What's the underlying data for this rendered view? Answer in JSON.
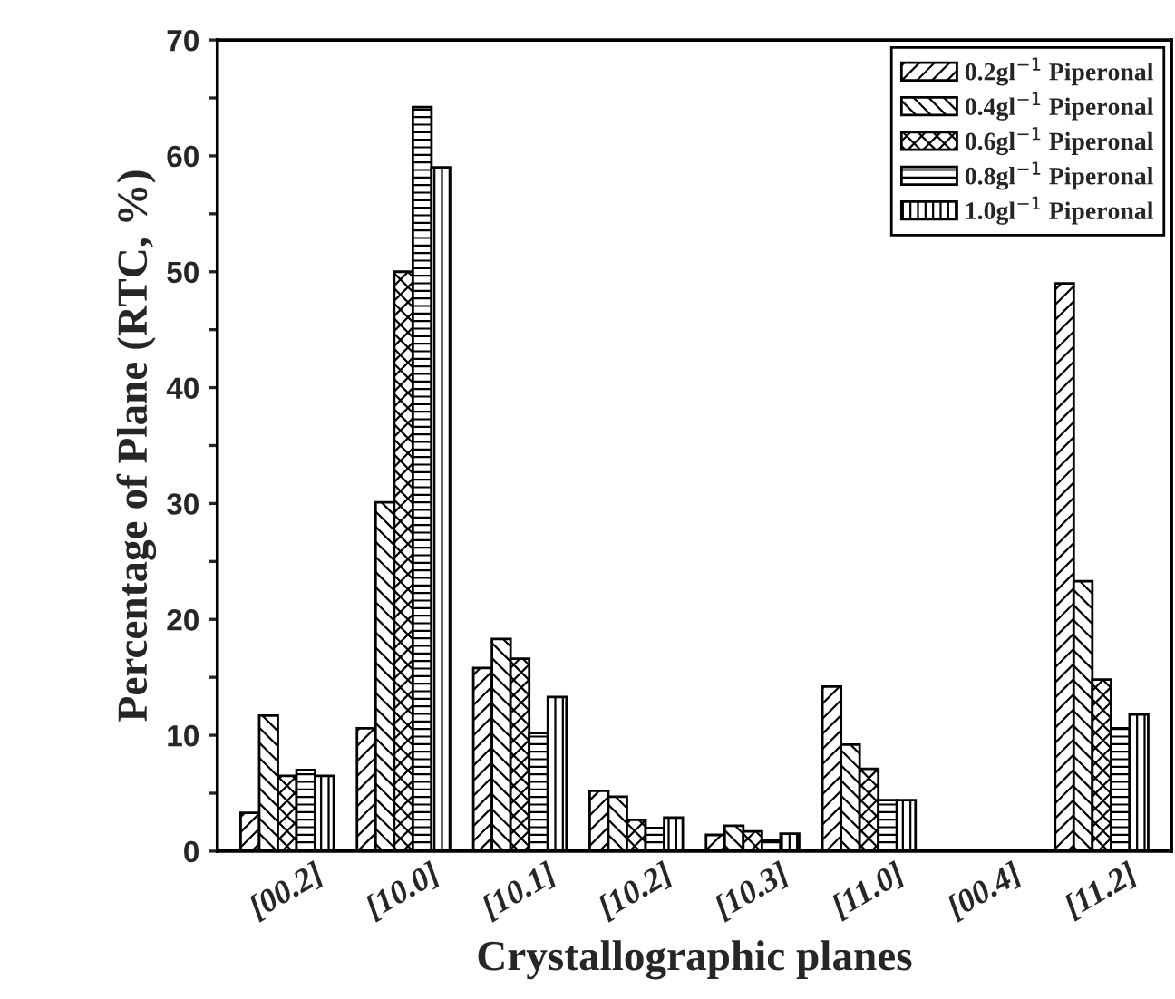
{
  "chart_data": {
    "type": "bar",
    "xlabel": "Crystallographic planes",
    "ylabel": "Percentage of Plane (RTC, %)",
    "categories": [
      "[00.2]",
      "[10.0]",
      "[10.1]",
      "[10.2]",
      "[10.3]",
      "[11.0]",
      "[00.4]",
      "[11.2]"
    ],
    "series": [
      {
        "name": "0.2gl$^{−1}$ Piperonal",
        "color": "#000000",
        "values": [
          3.3,
          10.6,
          15.8,
          5.2,
          1.4,
          14.2,
          null,
          49.0
        ]
      },
      {
        "name": "0.4gl$^{−1}$ Piperonal",
        "color": "#000000",
        "values": [
          11.7,
          30.1,
          18.3,
          4.7,
          2.2,
          9.2,
          null,
          23.3
        ]
      },
      {
        "name": "0.6gl$^{−1}$ Piperonal",
        "color": "#000000",
        "values": [
          6.5,
          50.0,
          16.6,
          2.7,
          1.7,
          7.1,
          null,
          14.8
        ]
      },
      {
        "name": "0.8gl$^{−1}$ Piperonal",
        "color": "#000000",
        "values": [
          7.0,
          64.2,
          10.2,
          2.0,
          0.9,
          4.4,
          null,
          10.6
        ]
      },
      {
        "name": "1.0gl$^{−1}$ Piperonal",
        "color": "#000000",
        "values": [
          6.5,
          59.0,
          13.3,
          2.9,
          1.5,
          4.4,
          null,
          11.8
        ]
      }
    ],
    "ylim": [
      0,
      70
    ],
    "yticks": [
      0,
      {
        "value": 5,
        "label": null
      },
      10,
      {
        "value": 15,
        "label": null
      },
      20,
      {
        "value": 25,
        "label": null
      },
      30,
      {
        "value": 35,
        "label": null
      },
      40,
      {
        "value": 45,
        "label": null
      },
      50,
      {
        "value": 55,
        "label": null
      },
      60,
      {
        "value": 65,
        "label": null
      },
      70
    ],
    "legend": "top right",
    "grid": false
  }
}
